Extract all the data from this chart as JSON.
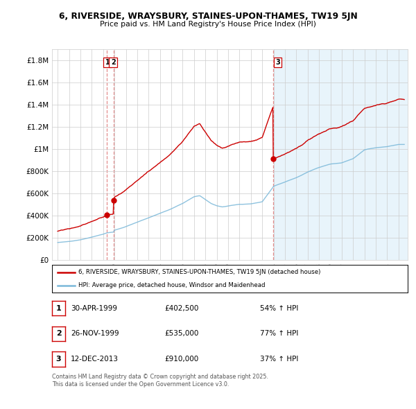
{
  "title_line1": "6, RIVERSIDE, WRAYSBURY, STAINES-UPON-THAMES, TW19 5JN",
  "title_line2": "Price paid vs. HM Land Registry's House Price Index (HPI)",
  "ylim": [
    0,
    1900000
  ],
  "yticks": [
    0,
    200000,
    400000,
    600000,
    800000,
    1000000,
    1200000,
    1400000,
    1600000,
    1800000
  ],
  "ytick_labels": [
    "£0",
    "£200K",
    "£400K",
    "£600K",
    "£800K",
    "£1M",
    "£1.2M",
    "£1.4M",
    "£1.6M",
    "£1.8M"
  ],
  "sale_dates": [
    1999.33,
    1999.91,
    2013.95
  ],
  "sale_prices": [
    402500,
    535000,
    910000
  ],
  "sale_labels": [
    "1",
    "2",
    "3"
  ],
  "hpi_color": "#7ab8d9",
  "price_color": "#cc0000",
  "vline_color": "#e08080",
  "legend_entry1": "6, RIVERSIDE, WRAYSBURY, STAINES-UPON-THAMES, TW19 5JN (detached house)",
  "legend_entry2": "HPI: Average price, detached house, Windsor and Maidenhead",
  "table_entries": [
    [
      "1",
      "30-APR-1999",
      "£402,500",
      "54% ↑ HPI"
    ],
    [
      "2",
      "26-NOV-1999",
      "£535,000",
      "77% ↑ HPI"
    ],
    [
      "3",
      "12-DEC-2013",
      "£910,000",
      "37% ↑ HPI"
    ]
  ],
  "footnote": "Contains HM Land Registry data © Crown copyright and database right 2025.\nThis data is licensed under the Open Government Licence v3.0.",
  "background_color": "#ffffff",
  "plot_bg_left": "#ffffff",
  "plot_bg_right": "#e8f4fb",
  "grid_color": "#cccccc",
  "hpi_key_years": [
    1995,
    1996,
    1997,
    1998,
    1999,
    1999.33,
    1999.91,
    2000,
    2001,
    2002,
    2003,
    2004,
    2005,
    2006,
    2007,
    2007.5,
    2008,
    2008.5,
    2009,
    2009.5,
    2010,
    2011,
    2012,
    2013,
    2013.95,
    2014,
    2015,
    2016,
    2017,
    2018,
    2019,
    2020,
    2021,
    2022,
    2023,
    2024,
    2025
  ],
  "hpi_key_vals": [
    155000,
    165000,
    180000,
    205000,
    230000,
    242000,
    248000,
    265000,
    300000,
    340000,
    380000,
    420000,
    460000,
    510000,
    570000,
    580000,
    545000,
    510000,
    490000,
    480000,
    490000,
    505000,
    510000,
    530000,
    660000,
    670000,
    710000,
    750000,
    800000,
    840000,
    870000,
    880000,
    920000,
    1000000,
    1020000,
    1030000,
    1050000
  ]
}
